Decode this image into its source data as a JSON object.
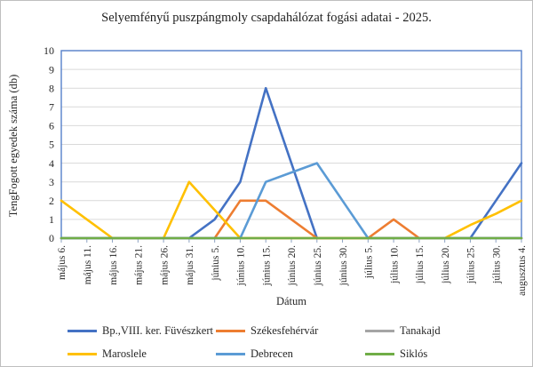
{
  "page": {
    "title": "Selyemfényű puszpángmoly csapdahálózat fogási adatai - 2025."
  },
  "chart_data": {
    "type": "line",
    "title": "Selyemfényű puszpángmoly csapdahálózat fogási adatai - 2025.",
    "xlabel": "Dátum",
    "ylabel": "TengFogott egyedek száma (db)",
    "ylim": [
      0,
      10
    ],
    "ytick_step": 1,
    "grid": true,
    "legend_position": "bottom",
    "gridline_color": "#D9D9D9",
    "plot_border_color": "#4472C4",
    "tick_color": "#8EA3C3",
    "text_color": "#262626",
    "categories": [
      "május 6.",
      "május 11.",
      "május 16.",
      "május 21.",
      "május 26.",
      "május 31.",
      "június 5.",
      "június 10.",
      "június 15.",
      "június 20.",
      "június 25.",
      "június 30.",
      "július 5.",
      "július 10.",
      "július 15.",
      "július 20.",
      "július 25.",
      "július 30.",
      "augusztus 4."
    ],
    "series": [
      {
        "name": "Bp.,VIII. ker. Füvészkert",
        "color": "#4472C4",
        "values": [
          0,
          0,
          0,
          0,
          0,
          0,
          1,
          3,
          8,
          4,
          0,
          0,
          0,
          0,
          0,
          0,
          0,
          2,
          4
        ]
      },
      {
        "name": "Székesfehérvár",
        "color": "#ED7D31",
        "values": [
          0,
          0,
          0,
          0,
          0,
          0,
          0,
          2,
          2,
          1,
          0,
          0,
          0,
          1,
          0,
          0,
          0,
          0,
          0
        ]
      },
      {
        "name": "Tanakajd",
        "color": "#A5A5A5",
        "values": [
          0,
          0,
          0,
          0,
          0,
          0,
          0,
          0,
          0,
          0,
          0,
          0,
          0,
          0,
          0,
          0,
          0,
          0,
          0
        ]
      },
      {
        "name": "Maroslele",
        "color": "#FFC000",
        "values": [
          2,
          1,
          0,
          0,
          0,
          3,
          1.5,
          0,
          0,
          0,
          0,
          0,
          0,
          0,
          0,
          0,
          0.7,
          1.3,
          2
        ]
      },
      {
        "name": "Debrecen",
        "color": "#5B9BD5",
        "values": [
          0,
          0,
          0,
          0,
          0,
          0,
          0,
          0,
          3,
          3.5,
          4,
          2,
          0,
          0,
          0,
          0,
          0,
          0,
          0
        ]
      },
      {
        "name": "Siklós",
        "color": "#70AD47",
        "values": [
          0,
          0,
          0,
          0,
          0,
          0,
          0,
          0,
          0,
          0,
          0,
          0,
          0,
          0,
          0,
          0,
          0,
          0,
          0
        ]
      }
    ]
  }
}
